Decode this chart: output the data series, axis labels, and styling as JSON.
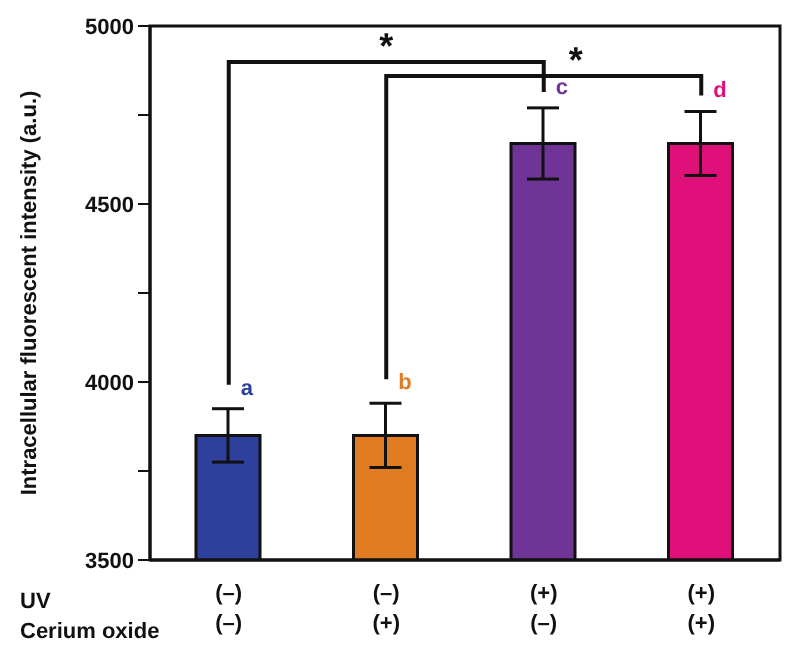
{
  "chart_data": {
    "type": "bar",
    "ylabel": "Intracellular fluorescent intensity (a.u.)",
    "xlabel": "UV\nCerium oxide",
    "categories": [
      "(–)\n(–)",
      "(–)\n(+)",
      "(+)\n(–)",
      "(+)\n(+)"
    ],
    "values": [
      3850,
      3850,
      4670,
      4670
    ],
    "colors": [
      "#2e3f9c",
      "#e07b22",
      "#6e3596",
      "#e0107a"
    ],
    "errors": [
      75,
      90,
      100,
      90
    ],
    "ylim": [
      3500,
      5000
    ],
    "yticks": [
      3500,
      {
        "value": 3750,
        "label": null
      },
      4000,
      {
        "value": 4250,
        "label": null
      },
      4500,
      {
        "value": 4750,
        "label": null
      },
      5000
    ],
    "annotations": [
      "*",
      "*",
      "a",
      "b",
      "c",
      "d"
    ]
  }
}
